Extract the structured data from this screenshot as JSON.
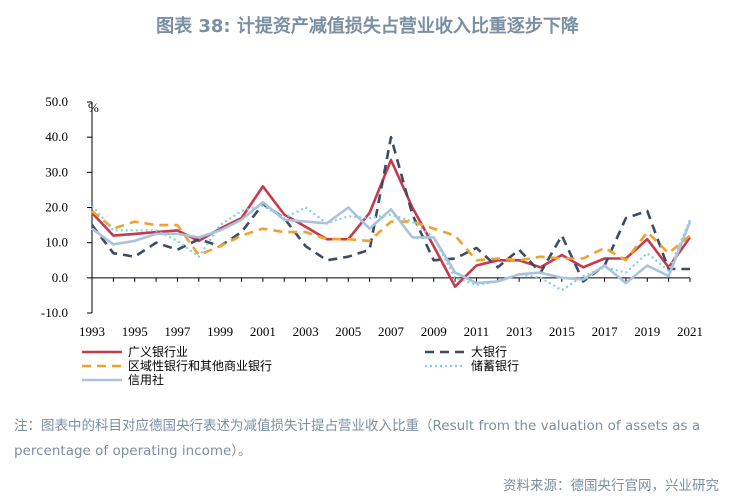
{
  "header": {
    "title": "图表 38: 计提资产减值损失占营业收入比重逐步下降"
  },
  "chart_data": {
    "type": "line",
    "title": "图表 38: 计提资产减值损失占营业收入比重逐步下降",
    "ylabel": "%",
    "xlabel": "",
    "ylim": [
      -10,
      50
    ],
    "yticks": [
      "50.0",
      "40.0",
      "30.0",
      "20.0",
      "10.0",
      "0.0",
      "-10.0"
    ],
    "ytick_values": [
      50,
      40,
      30,
      20,
      10,
      0,
      -10
    ],
    "xlim": [
      1993,
      2021
    ],
    "xticks": [
      "1993",
      "1995",
      "1997",
      "1999",
      "2001",
      "2003",
      "2005",
      "2007",
      "2009",
      "2011",
      "2013",
      "2015",
      "2017",
      "2019",
      "2021"
    ],
    "xtick_values": [
      1993,
      1995,
      1997,
      1999,
      2001,
      2003,
      2005,
      2007,
      2009,
      2011,
      2013,
      2015,
      2017,
      2019,
      2021
    ],
    "x": [
      1993,
      1994,
      1995,
      1996,
      1997,
      1998,
      1999,
      2000,
      2001,
      2002,
      2003,
      2004,
      2005,
      2006,
      2007,
      2008,
      2009,
      2010,
      2011,
      2012,
      2013,
      2014,
      2015,
      2016,
      2017,
      2018,
      2019,
      2020,
      2021
    ],
    "series": [
      {
        "name": "广义银行业",
        "color": "#c8394b",
        "style": "solid",
        "values": [
          18.5,
          12,
          12.5,
          13,
          13.5,
          10.5,
          14,
          17,
          26,
          18,
          14.5,
          11,
          11,
          18.5,
          33.5,
          20,
          9,
          -2.5,
          3.5,
          5,
          5,
          3,
          6.5,
          3,
          5.5,
          5.5,
          11,
          3,
          11.5
        ]
      },
      {
        "name": "大银行",
        "color": "#3e4c63",
        "style": "dash",
        "values": [
          15,
          7,
          6,
          10,
          8,
          11,
          9,
          13,
          21,
          17,
          9,
          5,
          6,
          8,
          40,
          18,
          5,
          5.5,
          8.5,
          3,
          8,
          1.5,
          12,
          -1,
          3.5,
          17,
          19,
          2.5,
          2.5
        ]
      },
      {
        "name": "区域性银行和其他商业银行",
        "color": "#f0a22e",
        "style": "dash",
        "values": [
          19,
          14,
          16,
          15,
          15,
          6.5,
          9,
          12,
          14,
          13,
          13,
          11,
          11,
          10.5,
          16,
          16,
          14,
          12,
          5,
          5.5,
          5,
          6,
          5.5,
          5.5,
          8.5,
          5,
          13,
          7,
          12
        ]
      },
      {
        "name": "储蓄银行",
        "color": "#7fd0e4",
        "style": "dot",
        "values": [
          20.5,
          13.5,
          13.5,
          13.5,
          10.5,
          6,
          15,
          19,
          20.5,
          17,
          20,
          15.5,
          17.5,
          17,
          18,
          16,
          11.5,
          0,
          -2,
          -1,
          1,
          0,
          -3.5,
          0.5,
          3,
          1.5,
          7,
          2,
          16.5
        ]
      },
      {
        "name": "信用社",
        "color": "#a9c3df",
        "style": "solid",
        "values": [
          14,
          9.5,
          10.5,
          12.5,
          12.5,
          11.5,
          13.5,
          16.5,
          21.5,
          16.5,
          16,
          15.5,
          20,
          14,
          19.5,
          11.5,
          11.5,
          1.5,
          -1.5,
          -1,
          1,
          1.5,
          0,
          -0.5,
          3.5,
          -1.5,
          3.5,
          0.5,
          16
        ]
      }
    ]
  },
  "footnote": {
    "note": "注：图表中的科目对应德国央行表述为减值损失计提占营业收入比重（Result from the valuation of assets as a percentage of operating income）。",
    "source": "资料来源：德国央行官网，兴业研究"
  }
}
